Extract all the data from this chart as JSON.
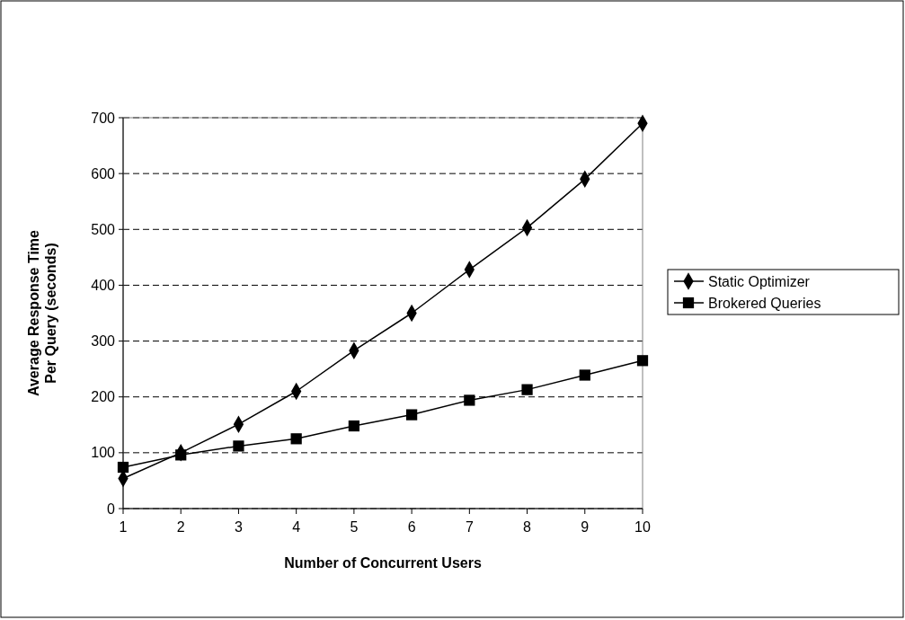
{
  "chart_data": {
    "type": "line",
    "xlabel": "Number of Concurrent Users",
    "ylabel": "Average Response Time\nPer Query (seconds)",
    "x": [
      1,
      2,
      3,
      4,
      5,
      6,
      7,
      8,
      9,
      10
    ],
    "xlim": [
      1,
      10
    ],
    "xticks": [
      1,
      2,
      3,
      4,
      5,
      6,
      7,
      8,
      9,
      10
    ],
    "ylim": [
      0,
      700
    ],
    "yticks": [
      0,
      100,
      200,
      300,
      400,
      500,
      600,
      700
    ],
    "grid": "y",
    "legend": "right",
    "line_style": "solid",
    "series": [
      {
        "name": "Static Optimizer",
        "color": "#000000",
        "marker": "diamond",
        "values": [
          54,
          100,
          151,
          210,
          283,
          350,
          428,
          503,
          590,
          690
        ]
      },
      {
        "name": "Brokered Queries",
        "color": "#000000",
        "marker": "square",
        "values": [
          74,
          96,
          112,
          125,
          148,
          168,
          194,
          213,
          239,
          265
        ]
      }
    ]
  }
}
